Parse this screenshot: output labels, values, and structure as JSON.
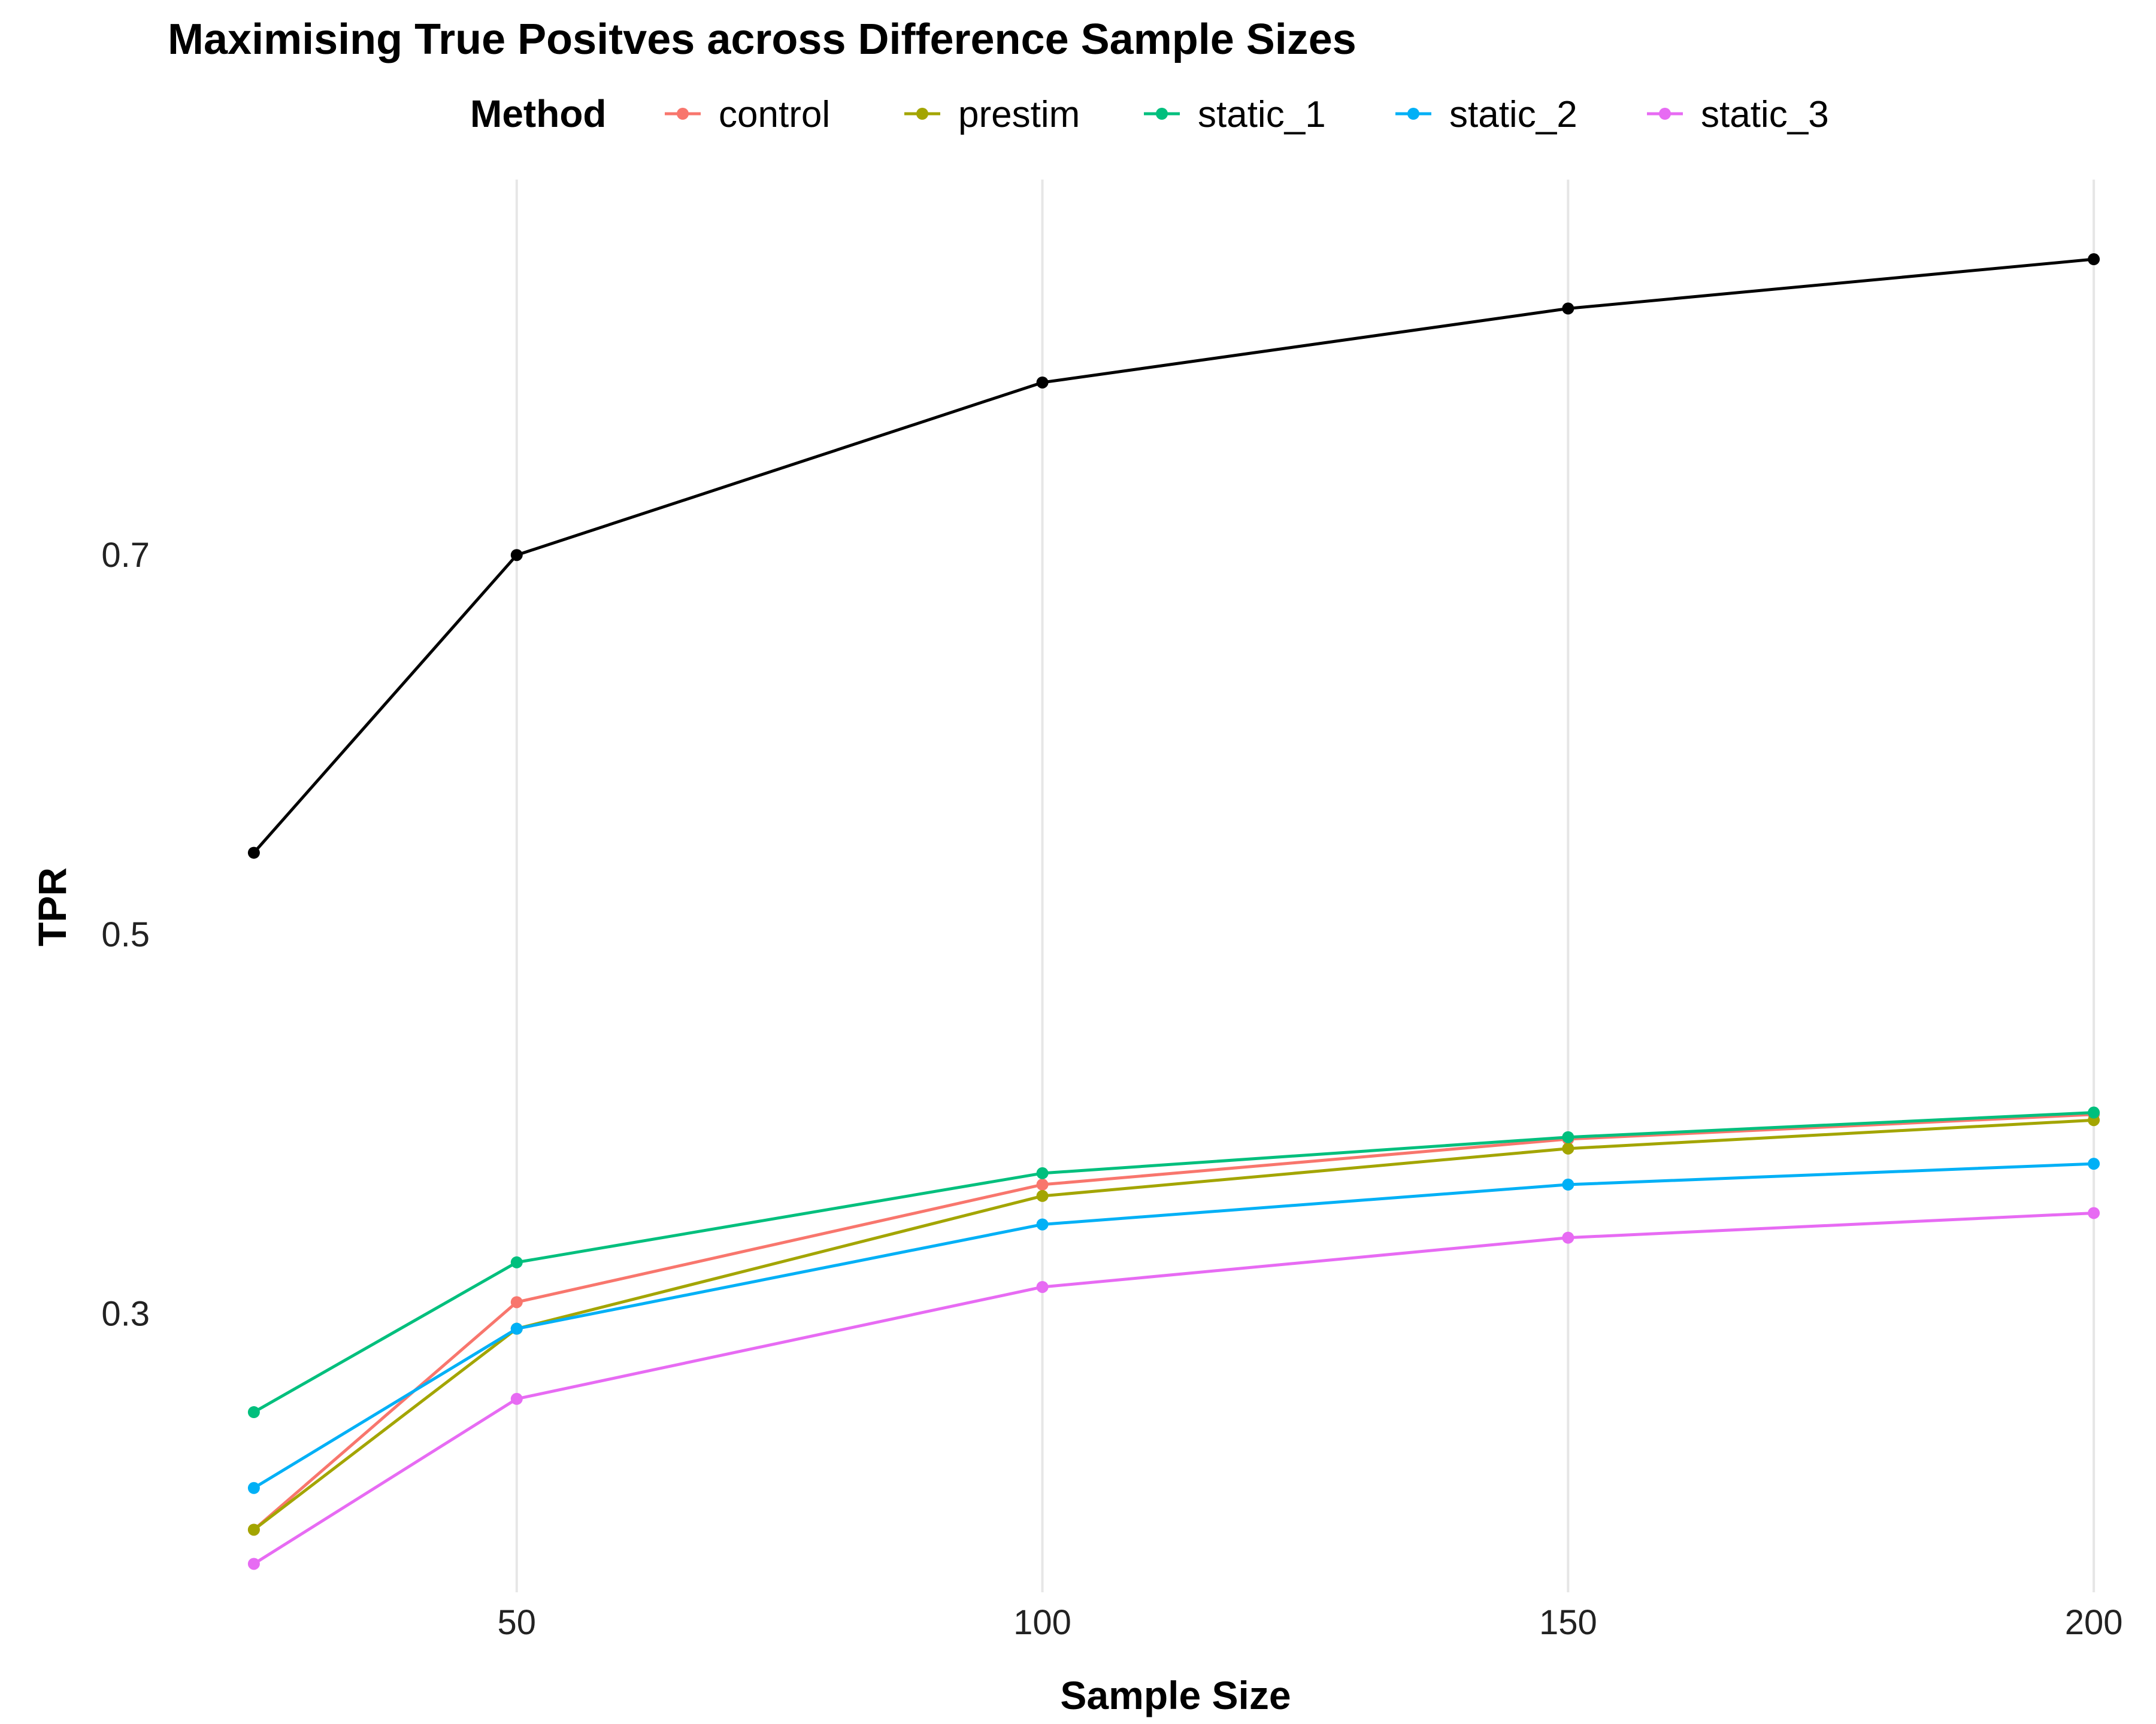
{
  "chart_data": {
    "type": "line",
    "title": "Maximising True Positves across Difference Sample Sizes",
    "xlabel": "Sample Size",
    "ylabel": "TPR",
    "legend_title": "Method",
    "legend_position": "top",
    "grid": "vertical major only",
    "x": [
      25,
      50,
      100,
      150,
      200
    ],
    "x_ticks": [
      50,
      100,
      150,
      200
    ],
    "y_ticks": [
      0.3,
      0.5,
      0.7
    ],
    "xlim": [
      22.5,
      202.5
    ],
    "ylim": [
      0.153,
      0.898
    ],
    "series": [
      {
        "name": "control",
        "color": "#F8766D",
        "values": [
          0.186,
          0.306,
          0.368,
          0.392,
          0.405
        ]
      },
      {
        "name": "prestim",
        "color": "#A3A500",
        "values": [
          0.186,
          0.292,
          0.362,
          0.387,
          0.402
        ]
      },
      {
        "name": "static_1",
        "color": "#00BF7D",
        "values": [
          0.248,
          0.327,
          0.374,
          0.393,
          0.406
        ]
      },
      {
        "name": "static_2",
        "color": "#00B0F6",
        "values": [
          0.208,
          0.292,
          0.347,
          0.368,
          0.379
        ]
      },
      {
        "name": "static_3",
        "color": "#E76BF3",
        "values": [
          0.168,
          0.255,
          0.314,
          0.34,
          0.353
        ]
      },
      {
        "color": "#000000",
        "values": [
          0.543,
          0.7,
          0.791,
          0.83,
          0.856
        ]
      }
    ]
  }
}
